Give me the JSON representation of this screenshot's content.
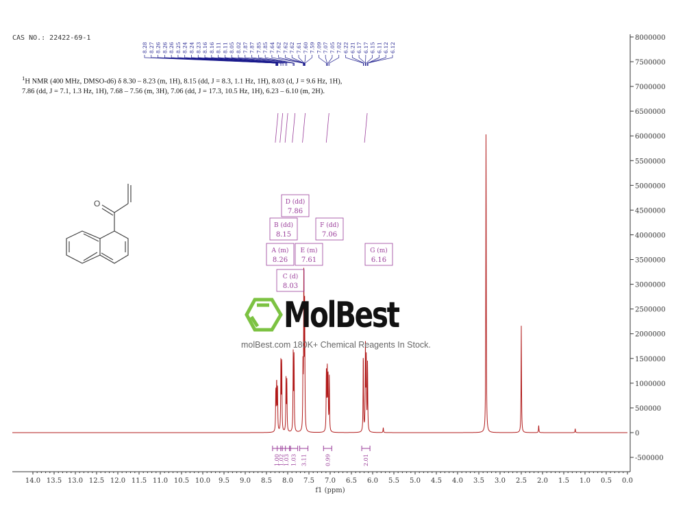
{
  "header": {
    "cas": "CAS NO.: 22422-69-1"
  },
  "description": {
    "nucleus_sup": "1",
    "text": "H NMR (400 MHz, DMSO-d6) δ 8.30 – 8.23 (m, 1H), 8.15 (dd, J = 8.3, 1.1 Hz, 1H), 8.03 (d, J = 9.6 Hz, 1H), 7.86 (dd, J = 7.1, 1.3 Hz, 1H), 7.68 – 7.56 (m, 3H), 7.06 (dd, J = 17.3, 10.5 Hz, 1H), 6.23 – 6.10 (m, 2H)."
  },
  "watermark": {
    "logo": "MolBest",
    "tagline": "molBest.com 180K+ Chemical Reagents In Stock."
  },
  "colors": {
    "spectrum": "#b01818",
    "peak_labels": "#1a1a8c",
    "integrals": "#9a3d9a",
    "axis": "#333333",
    "logo_green": "#7cc242"
  },
  "chart_data": {
    "type": "line",
    "xlabel": "f1 (ppm)",
    "ylabel": "",
    "xlim": [
      14.0,
      0.0
    ],
    "ylim": [
      -500000,
      8000000
    ],
    "x_ticks": [
      "14.0",
      "13.5",
      "13.0",
      "12.5",
      "12.0",
      "11.5",
      "11.0",
      "10.5",
      "10.0",
      "9.5",
      "9.0",
      "8.5",
      "8.0",
      "7.5",
      "7.0",
      "6.5",
      "6.0",
      "5.5",
      "5.0",
      "4.5",
      "4.0",
      "3.5",
      "3.0",
      "2.5",
      "2.0",
      "1.5",
      "1.0",
      "0.5",
      "0.0"
    ],
    "y_ticks": [
      "-500000",
      "0",
      "500000",
      "1000000",
      "1500000",
      "2000000",
      "2500000",
      "3000000",
      "3500000",
      "4000000",
      "4500000",
      "5000000",
      "5500000",
      "6000000",
      "6500000",
      "7000000",
      "7500000",
      "8000000"
    ],
    "peaks": [
      {
        "ppm": 8.28,
        "height": 850000
      },
      {
        "ppm": 8.26,
        "height": 1000000
      },
      {
        "ppm": 8.24,
        "height": 900000
      },
      {
        "ppm": 8.16,
        "height": 1450000
      },
      {
        "ppm": 8.14,
        "height": 1380000
      },
      {
        "ppm": 8.04,
        "height": 1050000
      },
      {
        "ppm": 8.02,
        "height": 1000000
      },
      {
        "ppm": 7.87,
        "height": 1600000
      },
      {
        "ppm": 7.85,
        "height": 1500000
      },
      {
        "ppm": 7.64,
        "height": 1300000
      },
      {
        "ppm": 7.62,
        "height": 3100000
      },
      {
        "ppm": 7.6,
        "height": 2500000
      },
      {
        "ppm": 7.09,
        "height": 1200000
      },
      {
        "ppm": 7.07,
        "height": 1250000
      },
      {
        "ppm": 7.05,
        "height": 1150000
      },
      {
        "ppm": 7.02,
        "height": 1100000
      },
      {
        "ppm": 6.22,
        "height": 1600000
      },
      {
        "ppm": 6.17,
        "height": 1700000
      },
      {
        "ppm": 6.15,
        "height": 1450000
      },
      {
        "ppm": 6.12,
        "height": 1400000
      },
      {
        "ppm": 5.75,
        "height": 100000
      },
      {
        "ppm": 3.33,
        "height": 6100000
      },
      {
        "ppm": 2.5,
        "height": 2160000
      },
      {
        "ppm": 2.09,
        "height": 150000
      },
      {
        "ppm": 1.23,
        "height": 80000
      }
    ],
    "peak_labels": [
      "8.28",
      "8.27",
      "8.26",
      "8.26",
      "8.26",
      "8.25",
      "8.24",
      "8.24",
      "8.23",
      "8.16",
      "8.16",
      "8.11",
      "8.11",
      "8.05",
      "8.02",
      "7.87",
      "7.87",
      "7.85",
      "7.85",
      "7.64",
      "7.62",
      "7.62",
      "7.62",
      "7.61",
      "7.60",
      "7.59",
      "7.09",
      "7.07",
      "7.05",
      "7.02",
      "6.22",
      "6.21",
      "6.17",
      "6.17",
      "6.15",
      "6.11",
      "6.12",
      "6.12"
    ],
    "multiplets": [
      {
        "label": "A (m)",
        "shift": "8.26"
      },
      {
        "label": "B (dd)",
        "shift": "8.15"
      },
      {
        "label": "C (d)",
        "shift": "8.03"
      },
      {
        "label": "D (dd)",
        "shift": "7.86"
      },
      {
        "label": "E (m)",
        "shift": "7.61"
      },
      {
        "label": "F (dd)",
        "shift": "7.06"
      },
      {
        "label": "G (m)",
        "shift": "6.16"
      }
    ],
    "integrals": [
      {
        "ppm": 8.26,
        "value": "1.00"
      },
      {
        "ppm": 8.15,
        "value": "1.02"
      },
      {
        "ppm": 8.03,
        "value": "1.03"
      },
      {
        "ppm": 7.86,
        "value": "1.03"
      },
      {
        "ppm": 7.62,
        "value": "3.11"
      },
      {
        "ppm": 7.06,
        "value": "0.99"
      },
      {
        "ppm": 6.16,
        "value": "2.01"
      }
    ]
  }
}
